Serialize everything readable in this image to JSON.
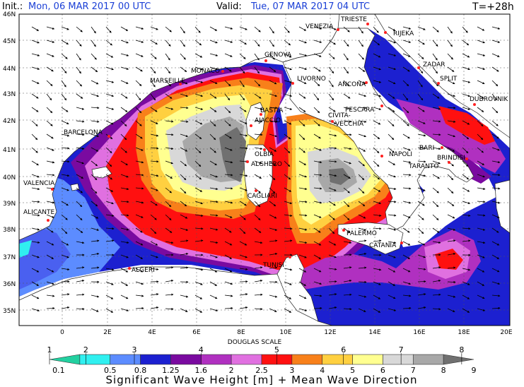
{
  "header": {
    "init_label": "Init.:",
    "init_value": "Mon, 06 MAR 2017   00 UTC",
    "valid_label": "Valid:",
    "valid_value": "Tue, 07 MAR 2017   04 UTC",
    "lead_time": "T=+28h"
  },
  "lat_labels": [
    "46N",
    "45N",
    "44N",
    "43N",
    "42N",
    "41N",
    "40N",
    "39N",
    "38N",
    "37N",
    "36N",
    "35N"
  ],
  "lon_labels": [
    "0",
    "2E",
    "4E",
    "6E",
    "8E",
    "10E",
    "12E",
    "14E",
    "16E",
    "18E",
    "20E"
  ],
  "cities": [
    "TRIESTE",
    "VENEZIA",
    "RIJEKA",
    "GENOVA",
    "MONACO",
    "MARSEILLE",
    "LIVORNO",
    "ZADAR",
    "ANCONA",
    "SPLIT",
    "DUBROVNIK",
    "BASTIA",
    "AJACCIO",
    "PESCARA",
    "CIVITA-",
    "VECCHIA",
    "BARCELONA",
    "OLBIA",
    "ALGHERO",
    "NAPOLI",
    "BARI",
    "BRINDISI",
    "TARANTO",
    "VALENCIA",
    "CAGLIARI",
    "ALICANTE",
    "PALERMO",
    "CATANIA",
    "ALGERI",
    "TUNISI"
  ],
  "legend": {
    "scale_title": "DOUGLAS SCALE",
    "douglas": [
      "1",
      "2",
      "3",
      "4",
      "5",
      "6",
      "7",
      "8"
    ],
    "values": [
      "0.1",
      "0.5",
      "0.8",
      "1.25",
      "1.6",
      "2",
      "2.5",
      "3",
      "4",
      "5",
      "6",
      "7",
      "8",
      "9"
    ],
    "colors": [
      "#22d0a0",
      "#30f0f0",
      "#5c8cff",
      "#1c20d0",
      "#7a0aa0",
      "#b030c0",
      "#e070e0",
      "#ff1010",
      "#f8801a",
      "#ffd040",
      "#ffff90",
      "#d8d8d8",
      "#a8a8a8",
      "#707070"
    ],
    "title": "Significant Wave Height [m] + Mean Wave Direction"
  }
}
